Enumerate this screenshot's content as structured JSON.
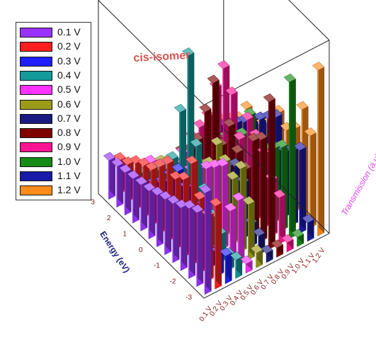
{
  "chart_data": {
    "type": "bar",
    "subtype": "3d-bar",
    "title": "cis-isomer",
    "xlabel": "",
    "ylabel": "Energy (eV)",
    "zlabel": "Transmission (a.u)",
    "legend_position": "top-left",
    "bias_categories": [
      "0.1 V",
      "0.2 V",
      "0.3 V",
      "0.4 V",
      "0.5 V",
      "0.6 V",
      "0.7 V",
      "0.8 V",
      "0.9 V",
      "1.0 V",
      "1.1 V",
      "1.2 V"
    ],
    "energy_ticks": [
      "3",
      "2",
      "1",
      "0",
      "-1",
      "-2",
      "-3"
    ],
    "energy_points": [
      3.0,
      2.5,
      2.0,
      1.5,
      1.0,
      0.5,
      0.0,
      -0.5,
      -1.0,
      -1.5,
      -2.0,
      -2.5,
      -3.0
    ],
    "series": [
      {
        "name": "0.1 V",
        "color": "#9933ff",
        "values": [
          0.55,
          0.4,
          0.38,
          0.34,
          0.32,
          0.3,
          0.28,
          0.26,
          0.25,
          0.24,
          0.23,
          0.22,
          0.21
        ]
      },
      {
        "name": "0.2 V",
        "color": "#ff1f1f",
        "values": [
          0.45,
          0.35,
          0.4,
          0.55,
          0.42,
          0.38,
          0.42,
          0.36,
          0.3,
          0.28,
          0.25,
          0.2,
          0.18
        ]
      },
      {
        "name": "0.3 V",
        "color": "#1f1fff",
        "values": [
          0.15,
          0.12,
          0.1,
          0.2,
          0.25,
          0.3,
          0.35,
          0.28,
          0.2,
          0.15,
          0.1,
          0.05,
          0.03
        ]
      },
      {
        "name": "0.4 V",
        "color": "#159a9a",
        "values": [
          0.1,
          0.08,
          0.15,
          0.2,
          0.3,
          0.5,
          0.95,
          0.6,
          0.3,
          0.2,
          0.15,
          0.1,
          0.05
        ]
      },
      {
        "name": "0.5 V",
        "color": "#ff33ff",
        "values": [
          0.05,
          0.35,
          0.25,
          0.45,
          0.4,
          0.35,
          0.3,
          0.25,
          0.3,
          0.2,
          0.15,
          0.1,
          0.08
        ]
      },
      {
        "name": "0.6 V",
        "color": "#9c9c1a",
        "values": [
          0.08,
          0.3,
          0.45,
          0.35,
          0.4,
          0.45,
          0.3,
          0.25,
          0.2,
          0.15,
          0.12,
          0.1,
          0.05
        ]
      },
      {
        "name": "0.7 V",
        "color": "#1a1a80",
        "values": [
          0.05,
          0.1,
          0.12,
          0.3,
          0.35,
          0.3,
          0.25,
          0.2,
          0.15,
          0.1,
          0.08,
          0.05,
          0.03
        ]
      },
      {
        "name": "0.8 V",
        "color": "#800000",
        "values": [
          0.05,
          0.8,
          0.55,
          0.5,
          0.3,
          0.35,
          0.45,
          0.3,
          0.6,
          0.4,
          0.2,
          0.1,
          0.05
        ]
      },
      {
        "name": "0.9 V",
        "color": "#ff1493",
        "values": [
          0.05,
          0.25,
          0.3,
          0.4,
          0.45,
          0.5,
          0.35,
          0.55,
          0.65,
          0.5,
          0.3,
          0.2,
          0.1
        ]
      },
      {
        "name": "1.0 V",
        "color": "#158a15",
        "values": [
          0.05,
          0.85,
          0.45,
          0.4,
          0.35,
          0.3,
          0.45,
          0.3,
          0.25,
          0.2,
          0.15,
          0.1,
          0.05
        ]
      },
      {
        "name": "1.1 V",
        "color": "#1a1aa8",
        "values": [
          0.1,
          0.45,
          0.4,
          0.35,
          0.5,
          0.45,
          0.4,
          0.35,
          0.3,
          0.25,
          0.2,
          0.15,
          0.1
        ]
      },
      {
        "name": "1.2 V",
        "color": "#ff8c1a",
        "values": [
          0.9,
          0.5,
          0.6,
          0.45,
          0.4,
          0.45,
          0.35,
          0.3,
          0.25,
          0.3,
          0.2,
          0.15,
          0.1
        ]
      }
    ],
    "grid": false
  }
}
